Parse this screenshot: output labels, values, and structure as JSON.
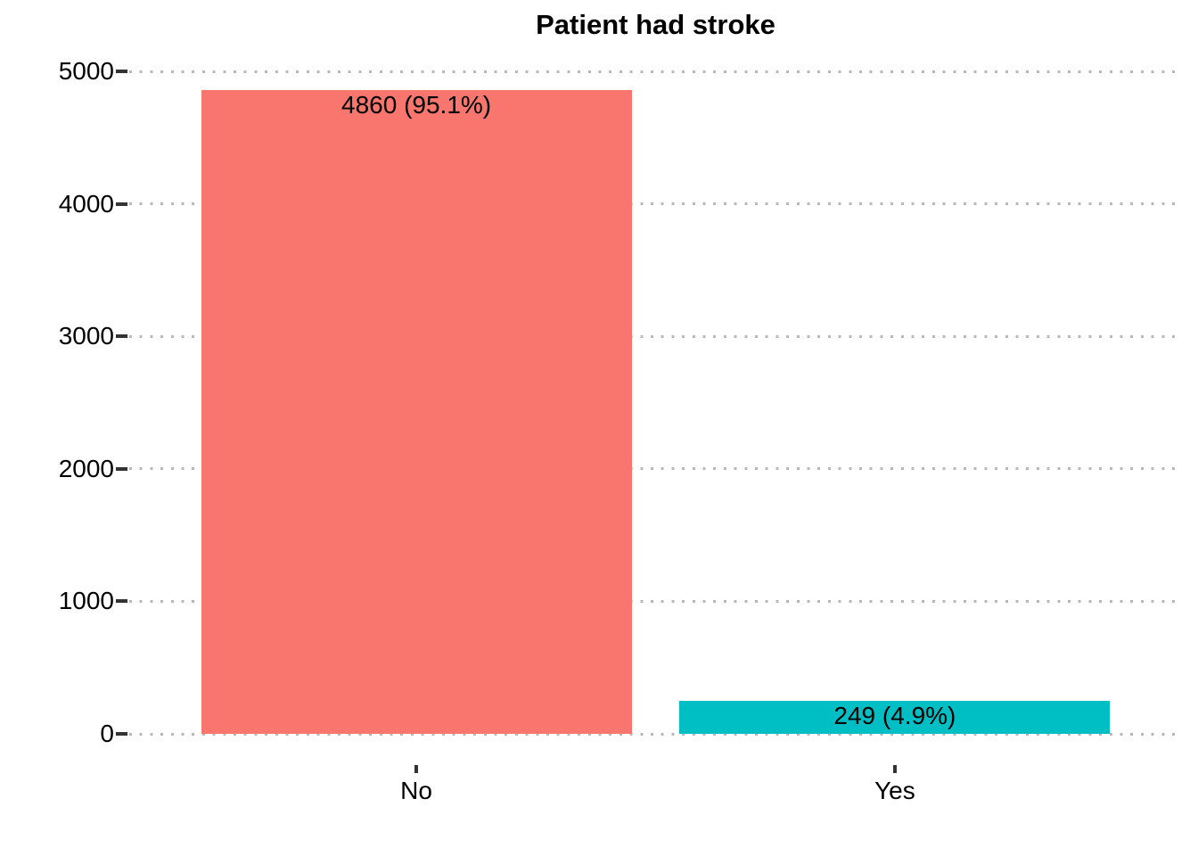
{
  "title": "Patient had stroke",
  "chart_data": {
    "type": "bar",
    "title": "Patient had stroke",
    "categories": [
      "No",
      "Yes"
    ],
    "values": [
      4860,
      249
    ],
    "bar_labels": [
      "4860 (95.1%)",
      "249 (4.9%)"
    ],
    "bar_colors": [
      "#F8766D",
      "#00BFC4"
    ],
    "xlabel": "",
    "ylabel": "",
    "ylim": [
      0,
      5000
    ],
    "yticks": [
      0,
      1000,
      2000,
      3000,
      4000,
      5000
    ],
    "grid": "horizontal-dotted",
    "grid_color": "#b9b9b9",
    "tick_color": "#333333",
    "legend": "none",
    "orientation": "vertical"
  }
}
